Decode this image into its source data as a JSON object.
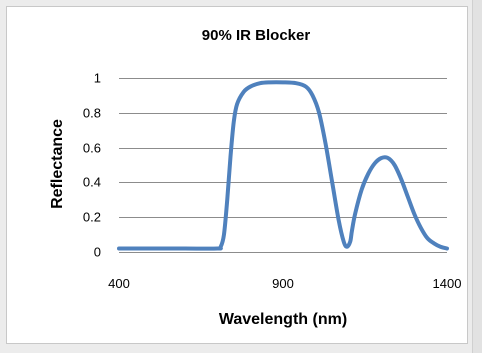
{
  "chart_data": {
    "type": "line",
    "title": "90% IR Blocker",
    "xlabel": "Wavelength (nm)",
    "ylabel": "Reflectance",
    "xlim": [
      400,
      1400
    ],
    "ylim": [
      0,
      1
    ],
    "x_ticks": [
      400,
      900,
      1400
    ],
    "y_ticks": [
      0,
      0.2,
      0.4,
      0.6,
      0.8,
      1
    ],
    "y_tick_labels": [
      "0",
      "0.2",
      "0.4",
      "0.6",
      "0.8",
      "1"
    ],
    "grid": true,
    "legend": "none",
    "series": [
      {
        "color": "#4f81bd",
        "x": [
          400,
          500,
          600,
          700,
          710,
          720,
          730,
          740,
          750,
          760,
          780,
          800,
          830,
          860,
          900,
          940,
          970,
          990,
          1010,
          1030,
          1050,
          1070,
          1085,
          1095,
          1105,
          1110,
          1120,
          1140,
          1160,
          1180,
          1200,
          1220,
          1240,
          1260,
          1280,
          1300,
          1320,
          1340,
          1360,
          1380,
          1400
        ],
        "y": [
          0.02,
          0.02,
          0.02,
          0.02,
          0.03,
          0.1,
          0.3,
          0.55,
          0.75,
          0.85,
          0.92,
          0.95,
          0.97,
          0.975,
          0.975,
          0.97,
          0.95,
          0.9,
          0.8,
          0.62,
          0.4,
          0.18,
          0.06,
          0.03,
          0.06,
          0.12,
          0.22,
          0.36,
          0.45,
          0.51,
          0.54,
          0.54,
          0.5,
          0.42,
          0.32,
          0.22,
          0.14,
          0.08,
          0.05,
          0.03,
          0.02
        ]
      }
    ]
  }
}
